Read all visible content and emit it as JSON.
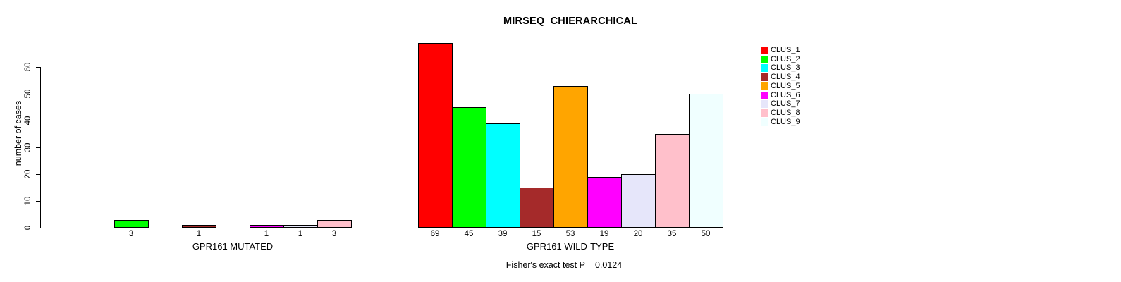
{
  "title": "MIRSEQ_CHIERARCHICAL",
  "footnote": "Fisher's exact test P = 0.0124",
  "chart_data": {
    "type": "bar",
    "title": "MIRSEQ_CHIERARCHICAL",
    "ylabel": "number of cases",
    "xlabel_left": "GPR161 MUTATED",
    "xlabel_right": "GPR161 WILD-TYPE",
    "ylim": [
      0,
      60
    ],
    "y_ticks": [
      0,
      10,
      20,
      30,
      40,
      50,
      60
    ],
    "grid": false,
    "legend_position": "top-right",
    "clusters": [
      {
        "name": "CLUS_1",
        "color": "#FF0000"
      },
      {
        "name": "CLUS_2",
        "color": "#00FF00"
      },
      {
        "name": "CLUS_3",
        "color": "#00FFFF"
      },
      {
        "name": "CLUS_4",
        "color": "#A52A2A"
      },
      {
        "name": "CLUS_5",
        "color": "#FFA500"
      },
      {
        "name": "CLUS_6",
        "color": "#FF00FF"
      },
      {
        "name": "CLUS_7",
        "color": "#E6E6FA"
      },
      {
        "name": "CLUS_8",
        "color": "#FFC0CB"
      },
      {
        "name": "CLUS_9",
        "color": "#F0FFFF"
      }
    ],
    "groups": [
      {
        "label": "GPR161 MUTATED",
        "values": [
          0,
          3,
          0,
          1,
          0,
          1,
          1,
          3,
          0
        ],
        "bar_labels": [
          "",
          "3",
          "",
          "1",
          "",
          "1",
          "1",
          "3",
          ""
        ]
      },
      {
        "label": "GPR161 WILD-TYPE",
        "values": [
          69,
          45,
          39,
          15,
          53,
          19,
          20,
          35,
          50
        ],
        "bar_labels": [
          "69",
          "45",
          "39",
          "15",
          "53",
          "19",
          "20",
          "35",
          "50"
        ]
      }
    ],
    "annotation": "Fisher's exact test P = 0.0124"
  }
}
